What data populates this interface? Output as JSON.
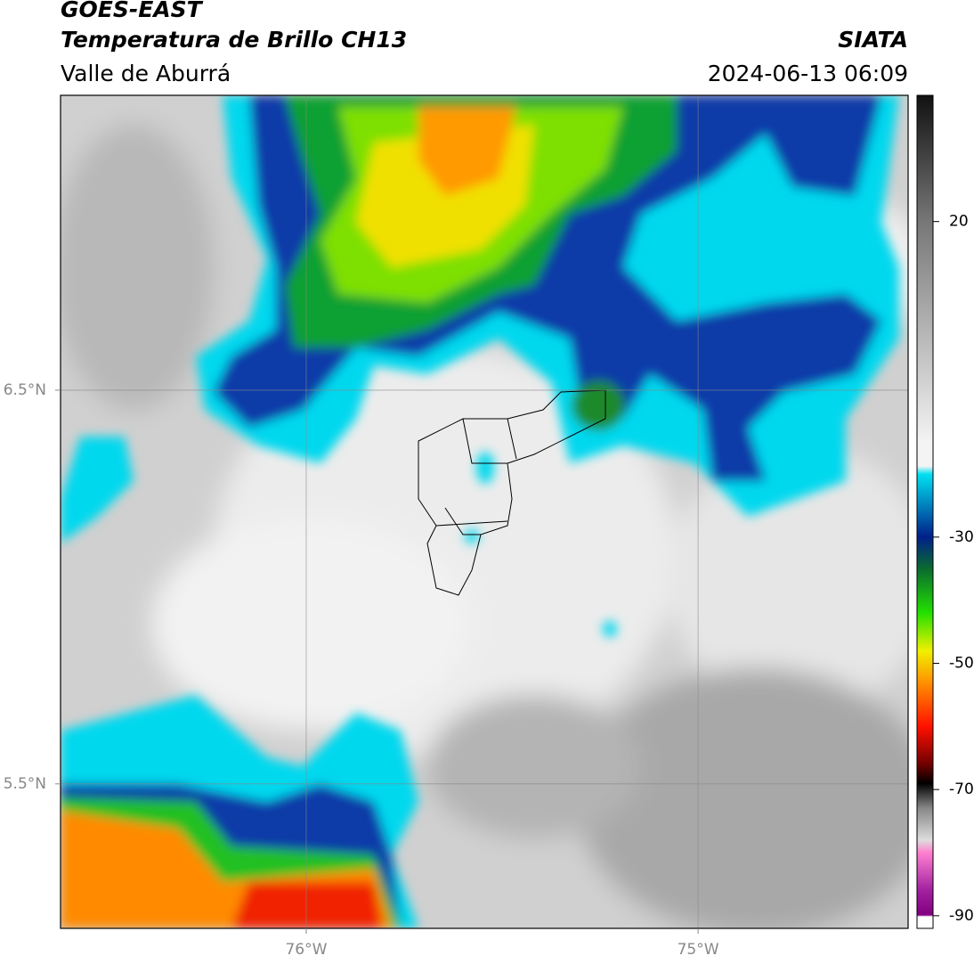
{
  "chart_data": {
    "type": "map",
    "title": "GOES-EAST",
    "subtitle": "Temperatura de Brillo CH13",
    "region": "Valle de Aburrá",
    "source": "SIATA",
    "datetime": "2024-06-13 06:09",
    "xlim": [
      -76.627,
      -74.464
    ],
    "ylim": [
      5.133,
      7.249
    ],
    "xticks": [
      {
        "value": -76,
        "label": "76°W"
      },
      {
        "value": -75,
        "label": "75°W"
      }
    ],
    "yticks": [
      {
        "value": 5.5,
        "label": "5.5°N"
      },
      {
        "value": 6.5,
        "label": "6.5°N"
      }
    ],
    "grid": true,
    "colorbar": {
      "lim": [
        -92,
        40
      ],
      "ticks": [
        -90,
        -70,
        -50,
        -30,
        20
      ]
    }
  }
}
